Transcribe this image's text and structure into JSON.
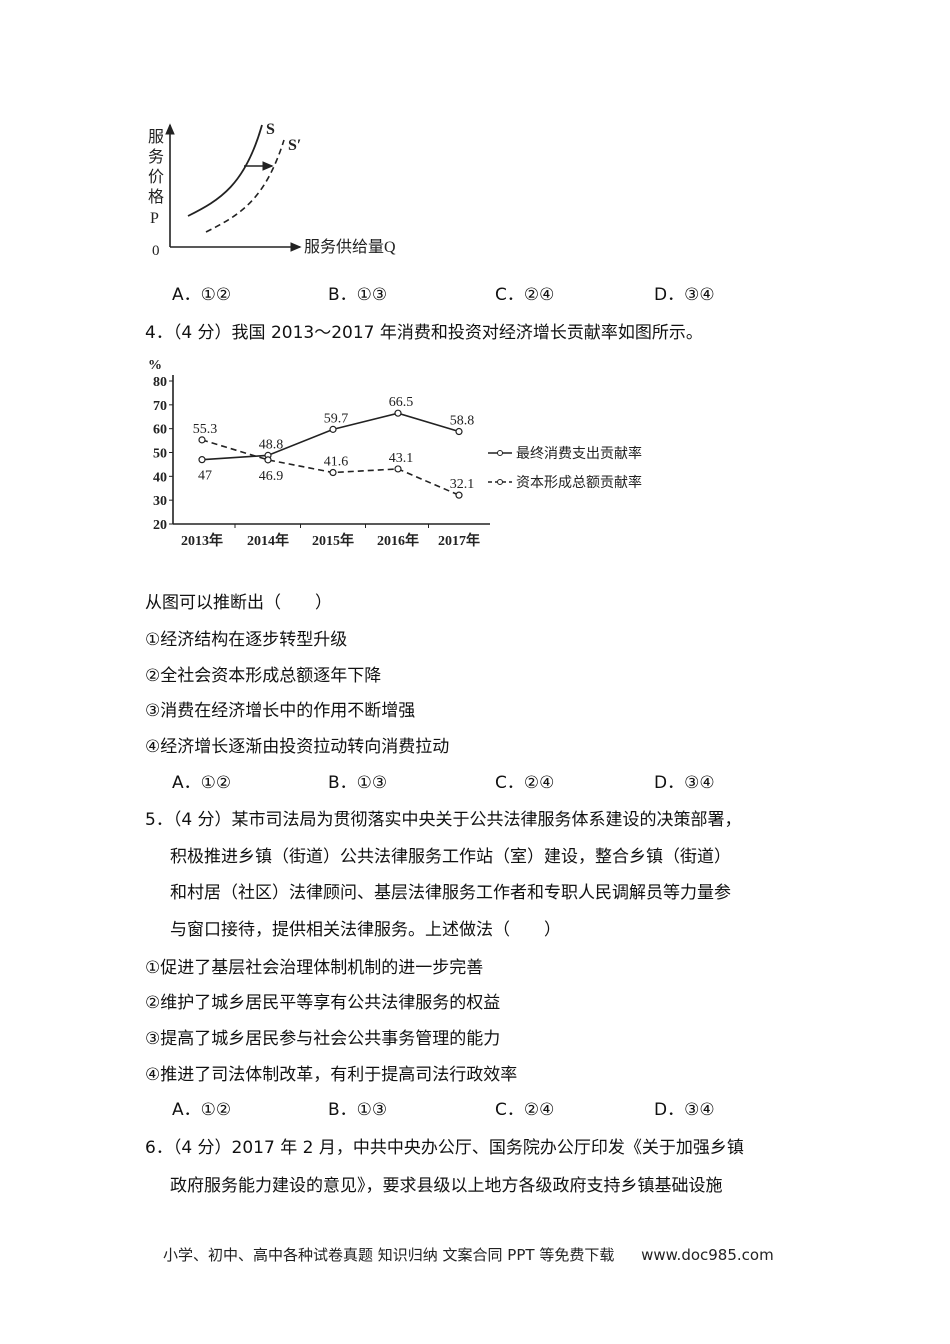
{
  "supply_diagram": {
    "y_label_chars": [
      "服",
      "务",
      "价",
      "格",
      "P"
    ],
    "origin": "0",
    "x_label": "服务供给量Q",
    "curve_s": "S",
    "curve_s_prime": "S′"
  },
  "q3_options": [
    "A．①②",
    "B．①③",
    "C．②④",
    "D．③④"
  ],
  "q4": {
    "stem": "4．（4 分）我国 2013～2017 年消费和投资对经济增长贡献率如图所示。",
    "prompt": "从图可以推断出（　　）",
    "items": [
      "①经济结构在逐步转型升级",
      "②全社会资本形成总额逐年下降",
      "③消费在经济增长中的作用不断增强",
      "④经济增长逐渐由投资拉动转向消费拉动"
    ],
    "options": [
      "A．①②",
      "B．①③",
      "C．②④",
      "D．③④"
    ]
  },
  "chart_data": {
    "type": "line",
    "ylabel": "%",
    "ylim": [
      20,
      80
    ],
    "yticks": [
      "80",
      "70",
      "60",
      "50",
      "40",
      "30",
      "20"
    ],
    "categories": [
      "2013年",
      "2014年",
      "2015年",
      "2016年",
      "2017年"
    ],
    "legend_position": "right",
    "grid": false,
    "series": [
      {
        "name": "最终消费支出贡献率",
        "style": "solid",
        "values": [
          47,
          48.8,
          59.7,
          66.5,
          58.8
        ],
        "labels": [
          "47",
          "48.8",
          "59.7",
          "66.5",
          "58.8"
        ]
      },
      {
        "name": "资本形成总额贡献率",
        "style": "dashed",
        "values": [
          55.3,
          46.9,
          41.6,
          43.1,
          32.1
        ],
        "labels": [
          "55.3",
          "46.9",
          "41.6",
          "43.1",
          "32.1"
        ]
      }
    ]
  },
  "q5": {
    "lines": [
      "5．（4 分）某市司法局为贯彻落实中央关于公共法律服务体系建设的决策部署，",
      "积极推进乡镇（街道）公共法律服务工作站（室）建设，整合乡镇（街道）",
      "和村居（社区）法律顾问、基层法律服务工作者和专职人民调解员等力量参",
      "与窗口接待，提供相关法律服务。上述做法（　　）"
    ],
    "items": [
      "①促进了基层社会治理体制机制的进一步完善",
      "②维护了城乡居民平等享有公共法律服务的权益",
      "③提高了城乡居民参与社会公共事务管理的能力",
      "④推进了司法体制改革，有利于提高司法行政效率"
    ],
    "options": [
      "A．①②",
      "B．①③",
      "C．②④",
      "D．③④"
    ]
  },
  "q6": {
    "lines": [
      "6．（4 分）2017 年 2 月，中共中央办公厅、国务院办公厅印发《关于加强乡镇",
      "政府服务能力建设的意见》，要求县级以上地方各级政府支持乡镇基础设施"
    ]
  },
  "footer": {
    "text": "小学、初中、高中各种试卷真题  知识归纳  文案合同  PPT 等免费下载",
    "url": "www.doc985.com"
  }
}
